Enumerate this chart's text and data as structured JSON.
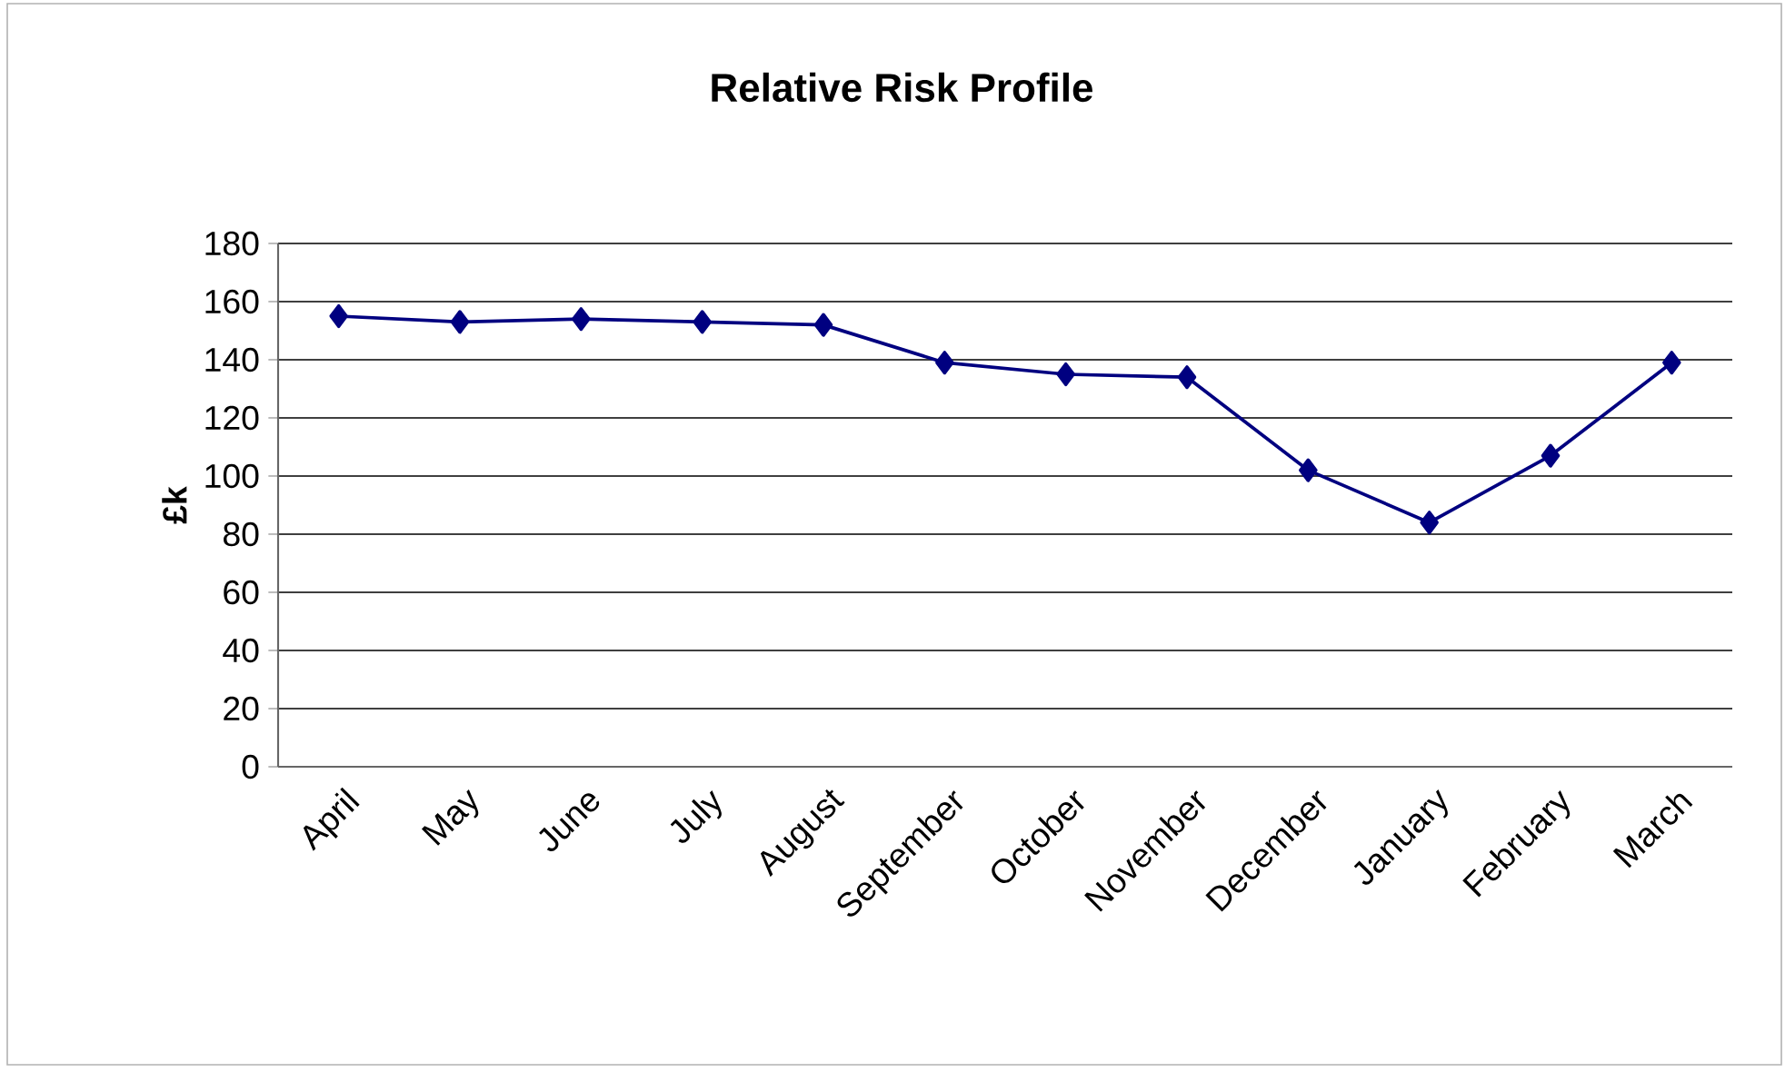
{
  "chart_data": {
    "type": "line",
    "title": "Relative Risk Profile",
    "ylabel": "£k",
    "categories": [
      "April",
      "May",
      "June",
      "July",
      "August",
      "September",
      "October",
      "November",
      "December",
      "January",
      "February",
      "March"
    ],
    "series": [
      {
        "color": "#000080",
        "values": [
          155,
          153,
          154,
          153,
          152,
          139,
          135,
          134,
          102,
          84,
          107,
          139
        ]
      }
    ],
    "ylim": [
      0,
      180
    ],
    "yticks": [
      0,
      20,
      40,
      60,
      80,
      100,
      120,
      140,
      160,
      180
    ],
    "grid": "y",
    "marker": "diamond",
    "line_style": "solid"
  }
}
